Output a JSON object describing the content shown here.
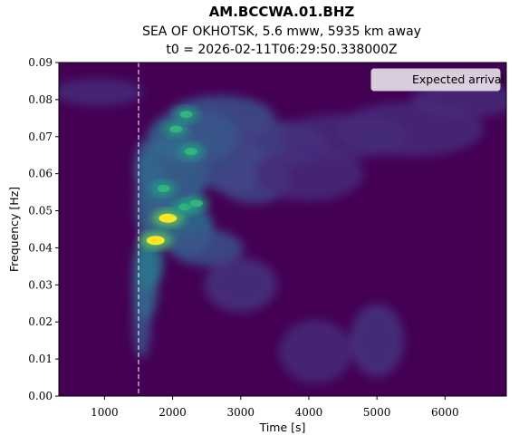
{
  "chart_data": {
    "type": "heatmap",
    "title": "AM.BCCWA.01.BHZ",
    "subtitle": "SEA OF OKHOTSK, 5.6 mww, 5935 km away",
    "subtitle2": "t0 = 2026-02-11T06:29:50.338000Z",
    "xlabel": "Time [s]",
    "ylabel": "Frequency [Hz]",
    "xlim": [
      330,
      6900
    ],
    "ylim": [
      0.0,
      0.09
    ],
    "xticks": [
      1000,
      2000,
      3000,
      4000,
      5000,
      6000
    ],
    "xtick_labels": [
      "1000",
      "2000",
      "3000",
      "4000",
      "5000",
      "6000"
    ],
    "yticks": [
      0.0,
      0.01,
      0.02,
      0.03,
      0.04,
      0.05,
      0.06,
      0.07,
      0.08,
      0.09
    ],
    "ytick_labels": [
      "0.00",
      "0.01",
      "0.02",
      "0.03",
      "0.04",
      "0.05",
      "0.06",
      "0.07",
      "0.08",
      "0.09"
    ],
    "colormap": "viridis",
    "expected_arrival_time": 1500,
    "legend": {
      "label": "Expected arrival",
      "placement": "top-right"
    },
    "hotspots": [
      {
        "t": 1750,
        "f": 0.042,
        "intensity": 1.0
      },
      {
        "t": 1930,
        "f": 0.048,
        "intensity": 1.0
      },
      {
        "t": 2180,
        "f": 0.051,
        "intensity": 0.5
      },
      {
        "t": 2350,
        "f": 0.052,
        "intensity": 0.45
      },
      {
        "t": 2200,
        "f": 0.076,
        "intensity": 0.6
      },
      {
        "t": 2270,
        "f": 0.066,
        "intensity": 0.5
      },
      {
        "t": 1870,
        "f": 0.056,
        "intensity": 0.45
      },
      {
        "t": 2050,
        "f": 0.072,
        "intensity": 0.4
      }
    ],
    "colors": {
      "background": "#440154",
      "line": "#ffffff"
    }
  }
}
